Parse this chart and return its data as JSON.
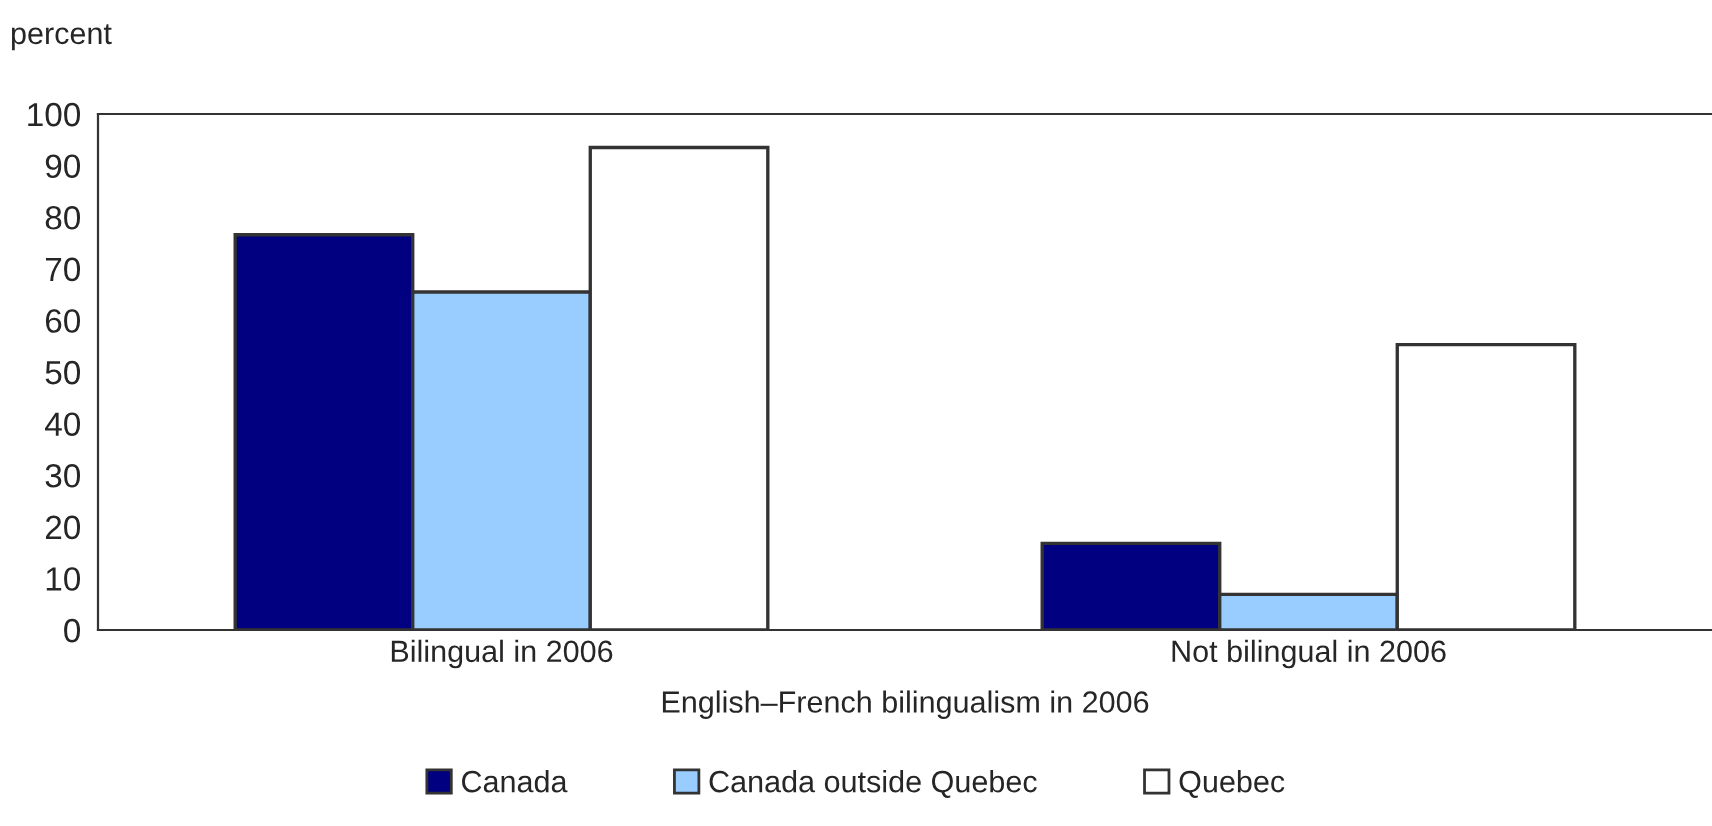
{
  "chart_data": {
    "type": "bar",
    "ylabel": "percent",
    "xlabel": "English–French bilingualism in 2006",
    "categories": [
      "Bilingual in 2006",
      "Not bilingual in 2006"
    ],
    "series": [
      {
        "name": "Canada",
        "color": "#000080",
        "values": [
          76.6,
          16.8
        ]
      },
      {
        "name": "Canada outside Quebec",
        "color": "#99ccff",
        "values": [
          65.5,
          6.9
        ]
      },
      {
        "name": "Quebec",
        "color": "#ffffff",
        "values": [
          93.5,
          55.3
        ]
      }
    ],
    "ylim": [
      0,
      100
    ],
    "yticks": [
      0,
      10,
      20,
      30,
      40,
      50,
      60,
      70,
      80,
      90,
      100
    ],
    "grid": false,
    "legend": "bottom"
  }
}
